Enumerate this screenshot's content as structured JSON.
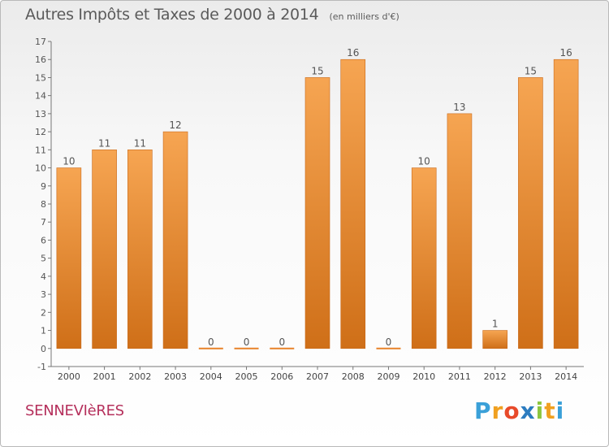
{
  "title": "Autres Impôts et Taxes de 2000 à 2014",
  "unit_label": "(en milliers d'€)",
  "commune": "SENNEVIèRES",
  "logo": {
    "letters": [
      "P",
      "r",
      "o",
      "x",
      "i",
      "t",
      "i"
    ],
    "colors": [
      "#3aa0d8",
      "#f0a020",
      "#e84a2a",
      "#2c7cc0",
      "#8cc63f",
      "#f0a020",
      "#3aa0d8"
    ]
  },
  "chart_data": {
    "type": "bar",
    "title": "Autres Impôts et Taxes de 2000 à 2014",
    "subtitle": "(en milliers d'€)",
    "categories": [
      "2000",
      "2001",
      "2002",
      "2003",
      "2004",
      "2005",
      "2006",
      "2007",
      "2008",
      "2009",
      "2010",
      "2011",
      "2012",
      "2013",
      "2014"
    ],
    "values": [
      10,
      11,
      11,
      12,
      0,
      0,
      0,
      15,
      16,
      0,
      10,
      13,
      1,
      15,
      16
    ],
    "data_labels": [
      "10",
      "11",
      "11",
      "12",
      "0",
      "0",
      "0",
      "15",
      "16",
      "0",
      "10",
      "13",
      "1",
      "15",
      "16"
    ],
    "yticks": [
      "-1",
      "0",
      "1",
      "2",
      "3",
      "4",
      "5",
      "6",
      "7",
      "8",
      "9",
      "10",
      "11",
      "12",
      "13",
      "14",
      "15",
      "16",
      "17"
    ],
    "ylim": [
      -1,
      17
    ],
    "grid": false,
    "bar_color": "#e8832a"
  }
}
